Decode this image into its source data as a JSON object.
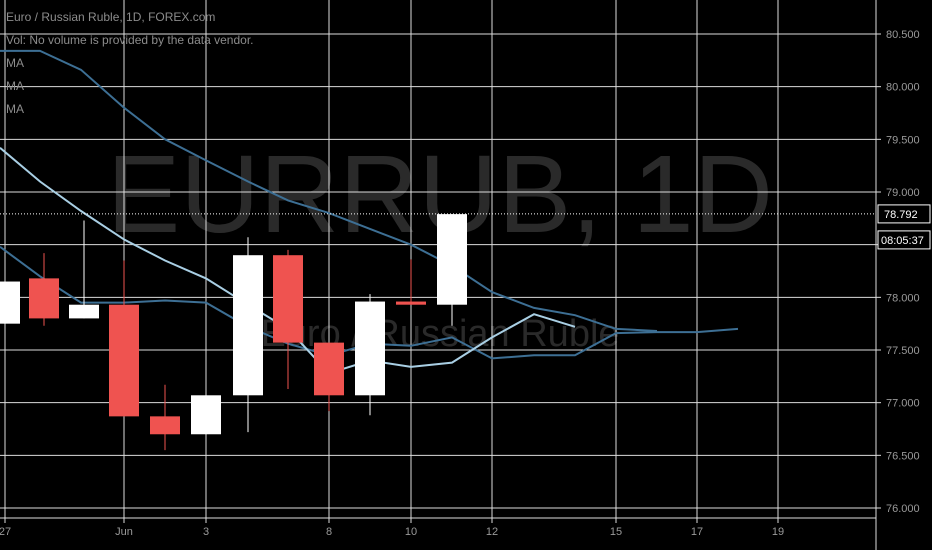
{
  "legend": {
    "title": "Euro / Russian Ruble, 1D, FOREX.com",
    "volume_note": "Vol: No volume is provided by the data vendor.",
    "ma_labels": [
      "MA",
      "MA",
      "MA"
    ]
  },
  "watermark": {
    "symbol": "EURRUB, 1D",
    "name": "Euro / Russian Ruble"
  },
  "current_price": {
    "value_label": "78.792",
    "countdown": "08:05:37"
  },
  "colors": {
    "up": "#ffffff",
    "down": "#ef5350",
    "grid": "#dcdcdc",
    "ma_dark": "#3d6f94",
    "ma_light": "#a9cfe4",
    "text": "#9a9a9a"
  },
  "chart_data": {
    "type": "candlestick",
    "symbol": "EURRUB",
    "interval": "1D",
    "x_ticks": [
      "27",
      "Jun",
      "3",
      "8",
      "10",
      "12",
      "15",
      "17",
      "19"
    ],
    "y_ticks": [
      "76.000",
      "76.500",
      "77.000",
      "77.500",
      "78.000",
      "78.500",
      "79.000",
      "79.500",
      "80.000",
      "80.500"
    ],
    "ylim": [
      76.0,
      80.5
    ],
    "candles": [
      {
        "open": 77.75,
        "close": 78.15,
        "high": 78.15,
        "low": 77.75,
        "dir": "up"
      },
      {
        "open": 78.18,
        "close": 77.8,
        "high": 78.42,
        "low": 77.73,
        "dir": "down"
      },
      {
        "open": 77.8,
        "close": 77.93,
        "high": 78.73,
        "low": 77.8,
        "dir": "up"
      },
      {
        "open": 77.93,
        "close": 76.87,
        "high": 78.35,
        "low": 76.87,
        "dir": "down"
      },
      {
        "open": 76.87,
        "close": 76.7,
        "high": 77.17,
        "low": 76.55,
        "dir": "down"
      },
      {
        "open": 76.7,
        "close": 77.07,
        "high": 77.07,
        "low": 76.7,
        "dir": "up"
      },
      {
        "open": 77.07,
        "close": 78.4,
        "high": 78.57,
        "low": 76.72,
        "dir": "up"
      },
      {
        "open": 78.4,
        "close": 77.57,
        "high": 78.45,
        "low": 77.13,
        "dir": "down"
      },
      {
        "open": 77.57,
        "close": 77.07,
        "high": 77.57,
        "low": 76.92,
        "dir": "down"
      },
      {
        "open": 77.07,
        "close": 77.96,
        "high": 78.03,
        "low": 76.88,
        "dir": "up"
      },
      {
        "open": 77.96,
        "close": 77.93,
        "high": 78.36,
        "low": 77.93,
        "dir": "down"
      },
      {
        "open": 77.93,
        "close": 78.79,
        "high": 78.79,
        "low": 77.73,
        "dir": "up"
      }
    ],
    "moving_averages": [
      {
        "style": "ma_dark",
        "points": [
          80.34,
          80.34,
          80.16,
          79.8,
          79.5,
          79.3,
          79.1,
          78.92,
          78.8,
          78.65,
          78.5,
          78.3,
          78.05,
          77.9,
          77.83,
          77.7,
          77.68
        ]
      },
      {
        "style": "ma_dark",
        "points": [
          78.48,
          78.2,
          77.95,
          77.95,
          77.97,
          77.95,
          77.72,
          77.56,
          77.45,
          77.56,
          77.54,
          77.62,
          77.42,
          77.45,
          77.45,
          77.66,
          77.67,
          77.67,
          77.7
        ]
      },
      {
        "style": "ma_light",
        "points": [
          79.42,
          79.1,
          78.82,
          78.55,
          78.35,
          78.18,
          77.93,
          77.7,
          77.28,
          77.4,
          77.34,
          77.38,
          77.62,
          77.84,
          77.72
        ]
      }
    ]
  }
}
